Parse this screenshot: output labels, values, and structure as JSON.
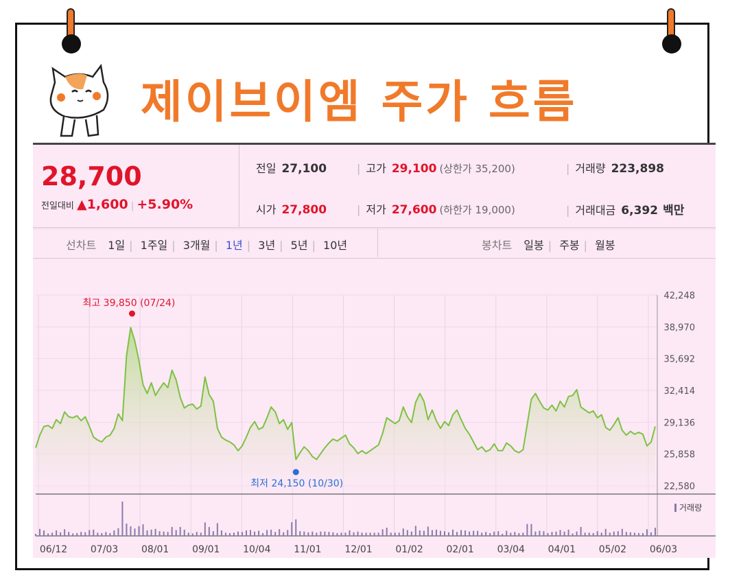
{
  "title": "제이브이엠 주가 흐름",
  "quote": {
    "price": "28,700",
    "change_label": "전일대비",
    "change_value": "▲1,600",
    "change_pct": "+5.90%",
    "prev_label": "전일",
    "prev_value": "27,100",
    "high_label": "고가",
    "high_value": "29,100",
    "upper_limit": "(상한가 35,200)",
    "volume_label": "거래량",
    "volume_value": "223,898",
    "open_label": "시가",
    "open_value": "27,800",
    "low_label": "저가",
    "low_value": "27,600",
    "lower_limit": "(하한가 19,000)",
    "amount_label": "거래대금",
    "amount_value": "6,392",
    "amount_unit": "백만"
  },
  "tabs": {
    "line_label": "선차트",
    "periods": [
      "1일",
      "1주일",
      "3개월",
      "1년",
      "3년",
      "5년",
      "10년"
    ],
    "active_period": "1년",
    "candle_label": "봉차트",
    "candles": [
      "일봉",
      "주봉",
      "월봉"
    ]
  },
  "colors": {
    "accent": "#f07a2a",
    "up": "#e0142a",
    "line": "#7cc242",
    "low_marker": "#2a6ed8",
    "volume": "#8a7aa8"
  },
  "chart_data": {
    "type": "area",
    "x_ticks": [
      "06/12",
      "07/03",
      "08/01",
      "09/01",
      "10/04",
      "11/01",
      "12/01",
      "01/02",
      "02/01",
      "03/04",
      "04/01",
      "05/02",
      "06/03"
    ],
    "y_ticks": [
      "42,248",
      "38,970",
      "35,692",
      "32,414",
      "29,136",
      "25,858",
      "22,580"
    ],
    "ylim": [
      22580,
      42248
    ],
    "max_annotation": "최고 39,850 (07/24)",
    "min_annotation": "최저 24,150 (10/30)",
    "volume_legend": "거래량",
    "series": [
      {
        "values": [
          26500,
          27800,
          28700,
          28800,
          28500,
          29400,
          29000,
          30200,
          29700,
          29600,
          29800,
          29300,
          29700,
          28700,
          27600,
          27300,
          27100,
          27600,
          27800,
          28500,
          30000,
          29300,
          36000,
          38900,
          37500,
          35500,
          33000,
          32100,
          33200,
          31900,
          32600,
          33200,
          32700,
          34500,
          33500,
          31700,
          30600,
          30900,
          31000,
          30500,
          30800,
          33800,
          32000,
          31300,
          28500,
          27600,
          27300,
          27100,
          26800,
          26200,
          26700,
          27600,
          28600,
          29200,
          28400,
          28600,
          29600,
          30700,
          30200,
          29000,
          29400,
          28400,
          29100,
          25300,
          26000,
          26600,
          26200,
          25600,
          25300,
          25900,
          26500,
          27000,
          27400,
          27200,
          27500,
          27800,
          26900,
          26500,
          25900,
          26200,
          25900,
          26200,
          26500,
          26800,
          28000,
          29600,
          29300,
          29000,
          29300,
          30700,
          29700,
          29100,
          31200,
          32100,
          31300,
          29400,
          30400,
          29300,
          28500,
          29200,
          28800,
          29900,
          30400,
          29400,
          28500,
          27900,
          27100,
          26300,
          26600,
          26100,
          26300,
          26900,
          26200,
          26200,
          27000,
          26700,
          26200,
          26000,
          26300,
          28900,
          31500,
          32100,
          31300,
          30600,
          30400,
          30900,
          30300,
          31300,
          30700,
          31800,
          31900,
          32500,
          30700,
          30400,
          30100,
          30300,
          29600,
          29900,
          28600,
          28300,
          28900,
          29600,
          28300,
          27800,
          28200,
          27900,
          28100,
          27900,
          26700,
          27100,
          28700
        ]
      }
    ]
  }
}
